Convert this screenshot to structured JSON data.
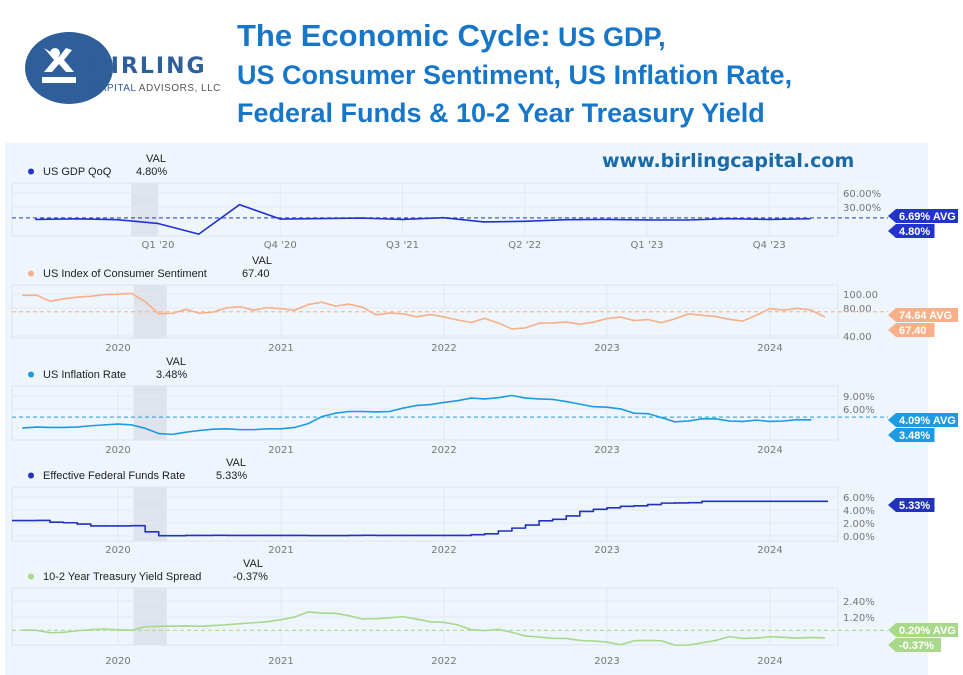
{
  "logo": {
    "name": "BIRLING",
    "subtitle_a": "CAPITAL",
    "subtitle_b": " ADVISORS, LLC",
    "color": "#2e5f9a"
  },
  "title": {
    "line1_a": "The Economic Cycle:",
    "line1_b": " US GDP,",
    "line2": "US Consumer Sentiment, US Inflation Rate,",
    "line3": "Federal Funds & 10-2 Year Treasury Yield",
    "color": "#1776c8"
  },
  "website": "www.birlingcapital.com",
  "val_header": "VAL",
  "chart_data": [
    {
      "type": "line",
      "name": "US GDP QoQ",
      "value_label": "4.80%",
      "avg_label": "6.69% AVG",
      "avg": 6.69,
      "color": "#2233cc",
      "categories": [
        "Q2 '19",
        "Q3 '19",
        "Q4 '19",
        "Q1 '20",
        "Q2 '20",
        "Q3 '20",
        "Q4 '20",
        "Q1 '21",
        "Q2 '21",
        "Q3 '21",
        "Q4 '21",
        "Q1 '22",
        "Q2 '22",
        "Q3 '22",
        "Q4 '22",
        "Q1 '23",
        "Q2 '23",
        "Q3 '23",
        "Q4 '23",
        "Q1 '24"
      ],
      "values": [
        3.4,
        4.6,
        2.8,
        -5.3,
        -28.0,
        34.8,
        4.2,
        5.2,
        6.2,
        3.3,
        7.0,
        -2.0,
        -0.6,
        2.7,
        3.4,
        2.2,
        2.1,
        4.9,
        3.4,
        4.8
      ],
      "x_ticks": [
        "Q1 '20",
        "Q4 '20",
        "Q3 '21",
        "Q2 '22",
        "Q1 '23",
        "Q4 '23"
      ],
      "y_ticks": [
        {
          "v": 60,
          "label": "60.00%"
        },
        {
          "v": 30,
          "label": "30.00%"
        }
      ],
      "ylim": [
        -32,
        81
      ],
      "recession_shading": [
        "Q4 '19",
        "Q1 '20"
      ]
    },
    {
      "type": "line",
      "name": "US Index of Consumer Sentiment",
      "value_label": "67.40",
      "avg_label": "74.64 AVG",
      "avg": 74.64,
      "color": "#f7b088",
      "x": [
        "2019-06",
        "2019-07",
        "2019-08",
        "2019-09",
        "2019-10",
        "2019-11",
        "2019-12",
        "2020-01",
        "2020-02",
        "2020-03",
        "2020-04",
        "2020-05",
        "2020-06",
        "2020-07",
        "2020-08",
        "2020-09",
        "2020-10",
        "2020-11",
        "2020-12",
        "2021-01",
        "2021-02",
        "2021-03",
        "2021-04",
        "2021-05",
        "2021-06",
        "2021-07",
        "2021-08",
        "2021-09",
        "2021-10",
        "2021-11",
        "2021-12",
        "2022-01",
        "2022-02",
        "2022-03",
        "2022-04",
        "2022-05",
        "2022-06",
        "2022-07",
        "2022-08",
        "2022-09",
        "2022-10",
        "2022-11",
        "2022-12",
        "2023-01",
        "2023-02",
        "2023-03",
        "2023-04",
        "2023-05",
        "2023-06",
        "2023-07",
        "2023-08",
        "2023-09",
        "2023-10",
        "2023-11",
        "2023-12",
        "2024-01",
        "2024-02",
        "2024-03",
        "2024-04",
        "2024-05"
      ],
      "values": [
        98.2,
        98.4,
        89.8,
        93.2,
        95.5,
        96.8,
        99.3,
        99.8,
        101.0,
        89.1,
        71.8,
        72.3,
        78.1,
        72.5,
        74.1,
        80.4,
        81.8,
        76.9,
        80.7,
        79.0,
        76.8,
        84.9,
        88.3,
        82.9,
        85.5,
        81.2,
        70.3,
        72.8,
        71.7,
        67.4,
        70.6,
        67.2,
        62.8,
        59.4,
        65.2,
        58.4,
        50.0,
        51.5,
        58.2,
        58.6,
        59.9,
        56.8,
        59.7,
        64.9,
        67.0,
        62.0,
        63.5,
        59.0,
        64.4,
        71.6,
        69.5,
        67.9,
        63.8,
        61.3,
        69.7,
        79.0,
        76.9,
        79.4,
        77.2,
        67.4
      ],
      "x_ticks": [
        "2020",
        "2021",
        "2022",
        "2023",
        "2024"
      ],
      "y_ticks": [
        {
          "v": 100,
          "label": "100.00"
        },
        {
          "v": 80,
          "label": "80.00"
        },
        {
          "v": 40,
          "label": "40.00"
        }
      ],
      "ylim": [
        37,
        113
      ],
      "recession_shading": [
        "2020-02",
        "2020-04"
      ]
    },
    {
      "type": "line",
      "name": "US Inflation Rate",
      "value_label": "3.48%",
      "avg_label": "4.09% AVG",
      "avg": 4.09,
      "color": "#1e9be0",
      "x": [
        "2019-06",
        "2019-07",
        "2019-08",
        "2019-09",
        "2019-10",
        "2019-11",
        "2019-12",
        "2020-01",
        "2020-02",
        "2020-03",
        "2020-04",
        "2020-05",
        "2020-06",
        "2020-07",
        "2020-08",
        "2020-09",
        "2020-10",
        "2020-11",
        "2020-12",
        "2021-01",
        "2021-02",
        "2021-03",
        "2021-04",
        "2021-05",
        "2021-06",
        "2021-07",
        "2021-08",
        "2021-09",
        "2021-10",
        "2021-11",
        "2021-12",
        "2022-01",
        "2022-02",
        "2022-03",
        "2022-04",
        "2022-05",
        "2022-06",
        "2022-07",
        "2022-08",
        "2022-09",
        "2022-10",
        "2022-11",
        "2022-12",
        "2023-01",
        "2023-02",
        "2023-03",
        "2023-04",
        "2023-05",
        "2023-06",
        "2023-07",
        "2023-08",
        "2023-09",
        "2023-10",
        "2023-11",
        "2023-12",
        "2024-01",
        "2024-02",
        "2024-03",
        "2024-04"
      ],
      "values": [
        1.6,
        1.8,
        1.7,
        1.7,
        1.8,
        2.1,
        2.3,
        2.5,
        2.3,
        1.5,
        0.3,
        0.1,
        0.6,
        1.0,
        1.3,
        1.4,
        1.2,
        1.2,
        1.4,
        1.4,
        1.7,
        2.6,
        4.2,
        5.0,
        5.4,
        5.4,
        5.3,
        5.4,
        6.2,
        6.8,
        7.0,
        7.5,
        7.9,
        8.5,
        8.3,
        8.6,
        9.1,
        8.5,
        8.3,
        8.2,
        7.7,
        7.1,
        6.5,
        6.4,
        6.0,
        5.0,
        4.9,
        4.0,
        3.0,
        3.2,
        3.7,
        3.7,
        3.2,
        3.1,
        3.4,
        3.1,
        3.2,
        3.5,
        3.48
      ],
      "x_ticks": [
        "2020",
        "2021",
        "2022",
        "2023",
        "2024"
      ],
      "y_ticks": [
        {
          "v": 9,
          "label": "9.00%"
        },
        {
          "v": 6,
          "label": "6.00%"
        }
      ],
      "ylim": [
        -1.2,
        11.3
      ],
      "recession_shading": [
        "2020-02",
        "2020-04"
      ]
    },
    {
      "type": "line",
      "name": "Effective Federal Funds Rate",
      "value_label": "5.33%",
      "color": "#2233bb",
      "step": true,
      "x": [
        "2019-06",
        "2019-07",
        "2019-08",
        "2019-09",
        "2019-10",
        "2019-11",
        "2019-12",
        "2020-01",
        "2020-02",
        "2020-03",
        "2020-04",
        "2020-05",
        "2020-06",
        "2020-07",
        "2020-08",
        "2020-09",
        "2020-10",
        "2020-11",
        "2020-12",
        "2021-01",
        "2021-02",
        "2021-03",
        "2021-04",
        "2021-05",
        "2021-06",
        "2021-07",
        "2021-08",
        "2021-09",
        "2021-10",
        "2021-11",
        "2021-12",
        "2022-01",
        "2022-02",
        "2022-03",
        "2022-04",
        "2022-05",
        "2022-06",
        "2022-07",
        "2022-08",
        "2022-09",
        "2022-10",
        "2022-11",
        "2022-12",
        "2023-01",
        "2023-02",
        "2023-03",
        "2023-04",
        "2023-05",
        "2023-06",
        "2023-07",
        "2023-08",
        "2023-09",
        "2023-10",
        "2023-11",
        "2023-12",
        "2024-01",
        "2024-02",
        "2024-03",
        "2024-04",
        "2024-05"
      ],
      "values": [
        2.38,
        2.4,
        2.13,
        2.04,
        1.83,
        1.55,
        1.55,
        1.55,
        1.58,
        0.65,
        0.05,
        0.05,
        0.08,
        0.09,
        0.1,
        0.09,
        0.09,
        0.09,
        0.09,
        0.09,
        0.08,
        0.07,
        0.07,
        0.06,
        0.08,
        0.1,
        0.09,
        0.08,
        0.08,
        0.08,
        0.08,
        0.08,
        0.08,
        0.2,
        0.33,
        0.77,
        1.21,
        1.68,
        2.33,
        2.56,
        3.08,
        3.78,
        4.1,
        4.33,
        4.57,
        4.65,
        4.83,
        5.06,
        5.08,
        5.12,
        5.33,
        5.33,
        5.33,
        5.33,
        5.33,
        5.33,
        5.33,
        5.33,
        5.33,
        5.33
      ],
      "x_ticks": [
        "2020",
        "2021",
        "2022",
        "2023",
        "2024"
      ],
      "y_ticks": [
        {
          "v": 6,
          "label": "6.00%"
        },
        {
          "v": 4,
          "label": "4.00%"
        },
        {
          "v": 2,
          "label": "2.00%"
        },
        {
          "v": 0,
          "label": "0.00%"
        }
      ],
      "ylim": [
        -0.77,
        7.54
      ],
      "recession_shading": [
        "2020-02",
        "2020-04"
      ]
    },
    {
      "type": "line",
      "name": "10-2 Year Treasury Yield Spread",
      "value_label": "-0.37%",
      "avg_label": "0.20% AVG",
      "avg": 0.2,
      "color": "#a8d88a",
      "x": [
        "2019-06",
        "2019-07",
        "2019-08",
        "2019-09",
        "2019-10",
        "2019-11",
        "2019-12",
        "2020-01",
        "2020-02",
        "2020-03",
        "2020-04",
        "2020-05",
        "2020-06",
        "2020-07",
        "2020-08",
        "2020-09",
        "2020-10",
        "2020-11",
        "2020-12",
        "2021-01",
        "2021-02",
        "2021-03",
        "2021-04",
        "2021-05",
        "2021-06",
        "2021-07",
        "2021-08",
        "2021-09",
        "2021-10",
        "2021-11",
        "2021-12",
        "2022-01",
        "2022-02",
        "2022-03",
        "2022-04",
        "2022-05",
        "2022-06",
        "2022-07",
        "2022-08",
        "2022-09",
        "2022-10",
        "2022-11",
        "2022-12",
        "2023-01",
        "2023-02",
        "2023-03",
        "2023-04",
        "2023-05",
        "2023-06",
        "2023-07",
        "2023-08",
        "2023-09",
        "2023-10",
        "2023-11",
        "2023-12",
        "2024-01",
        "2024-02",
        "2024-03",
        "2024-04",
        "2024-05"
      ],
      "values": [
        0.22,
        0.2,
        0.02,
        0.05,
        0.17,
        0.25,
        0.3,
        0.24,
        0.2,
        0.48,
        0.5,
        0.52,
        0.53,
        0.5,
        0.56,
        0.62,
        0.7,
        0.77,
        0.85,
        1.0,
        1.2,
        1.58,
        1.5,
        1.48,
        1.3,
        1.05,
        1.08,
        1.14,
        1.23,
        1.05,
        0.84,
        0.8,
        0.61,
        0.25,
        0.18,
        0.28,
        0.05,
        -0.22,
        -0.3,
        -0.4,
        -0.41,
        -0.56,
        -0.6,
        -0.68,
        -0.88,
        -0.58,
        -0.56,
        -0.58,
        -0.91,
        -0.91,
        -0.73,
        -0.56,
        -0.27,
        -0.41,
        -0.38,
        -0.28,
        -0.32,
        -0.39,
        -0.33,
        -0.37
      ],
      "x_ticks": [
        "2020",
        "2021",
        "2022",
        "2023",
        "2024"
      ],
      "y_ticks": [
        {
          "v": 2.4,
          "label": "2.40%"
        },
        {
          "v": 1.2,
          "label": "1.20%"
        }
      ],
      "ylim": [
        -0.9,
        3.38
      ],
      "recession_shading": [
        "2020-02",
        "2020-04"
      ]
    }
  ]
}
